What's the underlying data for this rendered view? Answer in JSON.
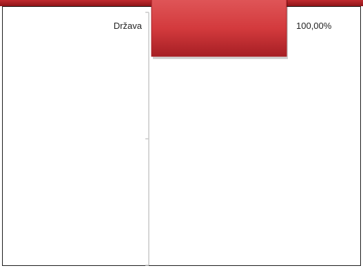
{
  "chart_data": {
    "type": "bar",
    "orientation": "horizontal",
    "categories": [
      "Država"
    ],
    "values": [
      100
    ],
    "data_labels": [
      "100,00%"
    ],
    "xlim": [
      0,
      100
    ],
    "title": "",
    "xlabel": "",
    "ylabel": "",
    "grid": false,
    "legend": "none",
    "colors": {
      "bar": "#d33a3d",
      "bar_light": "#e15a5c",
      "bar_dark": "#a61f24",
      "header": "#b0232a"
    }
  }
}
